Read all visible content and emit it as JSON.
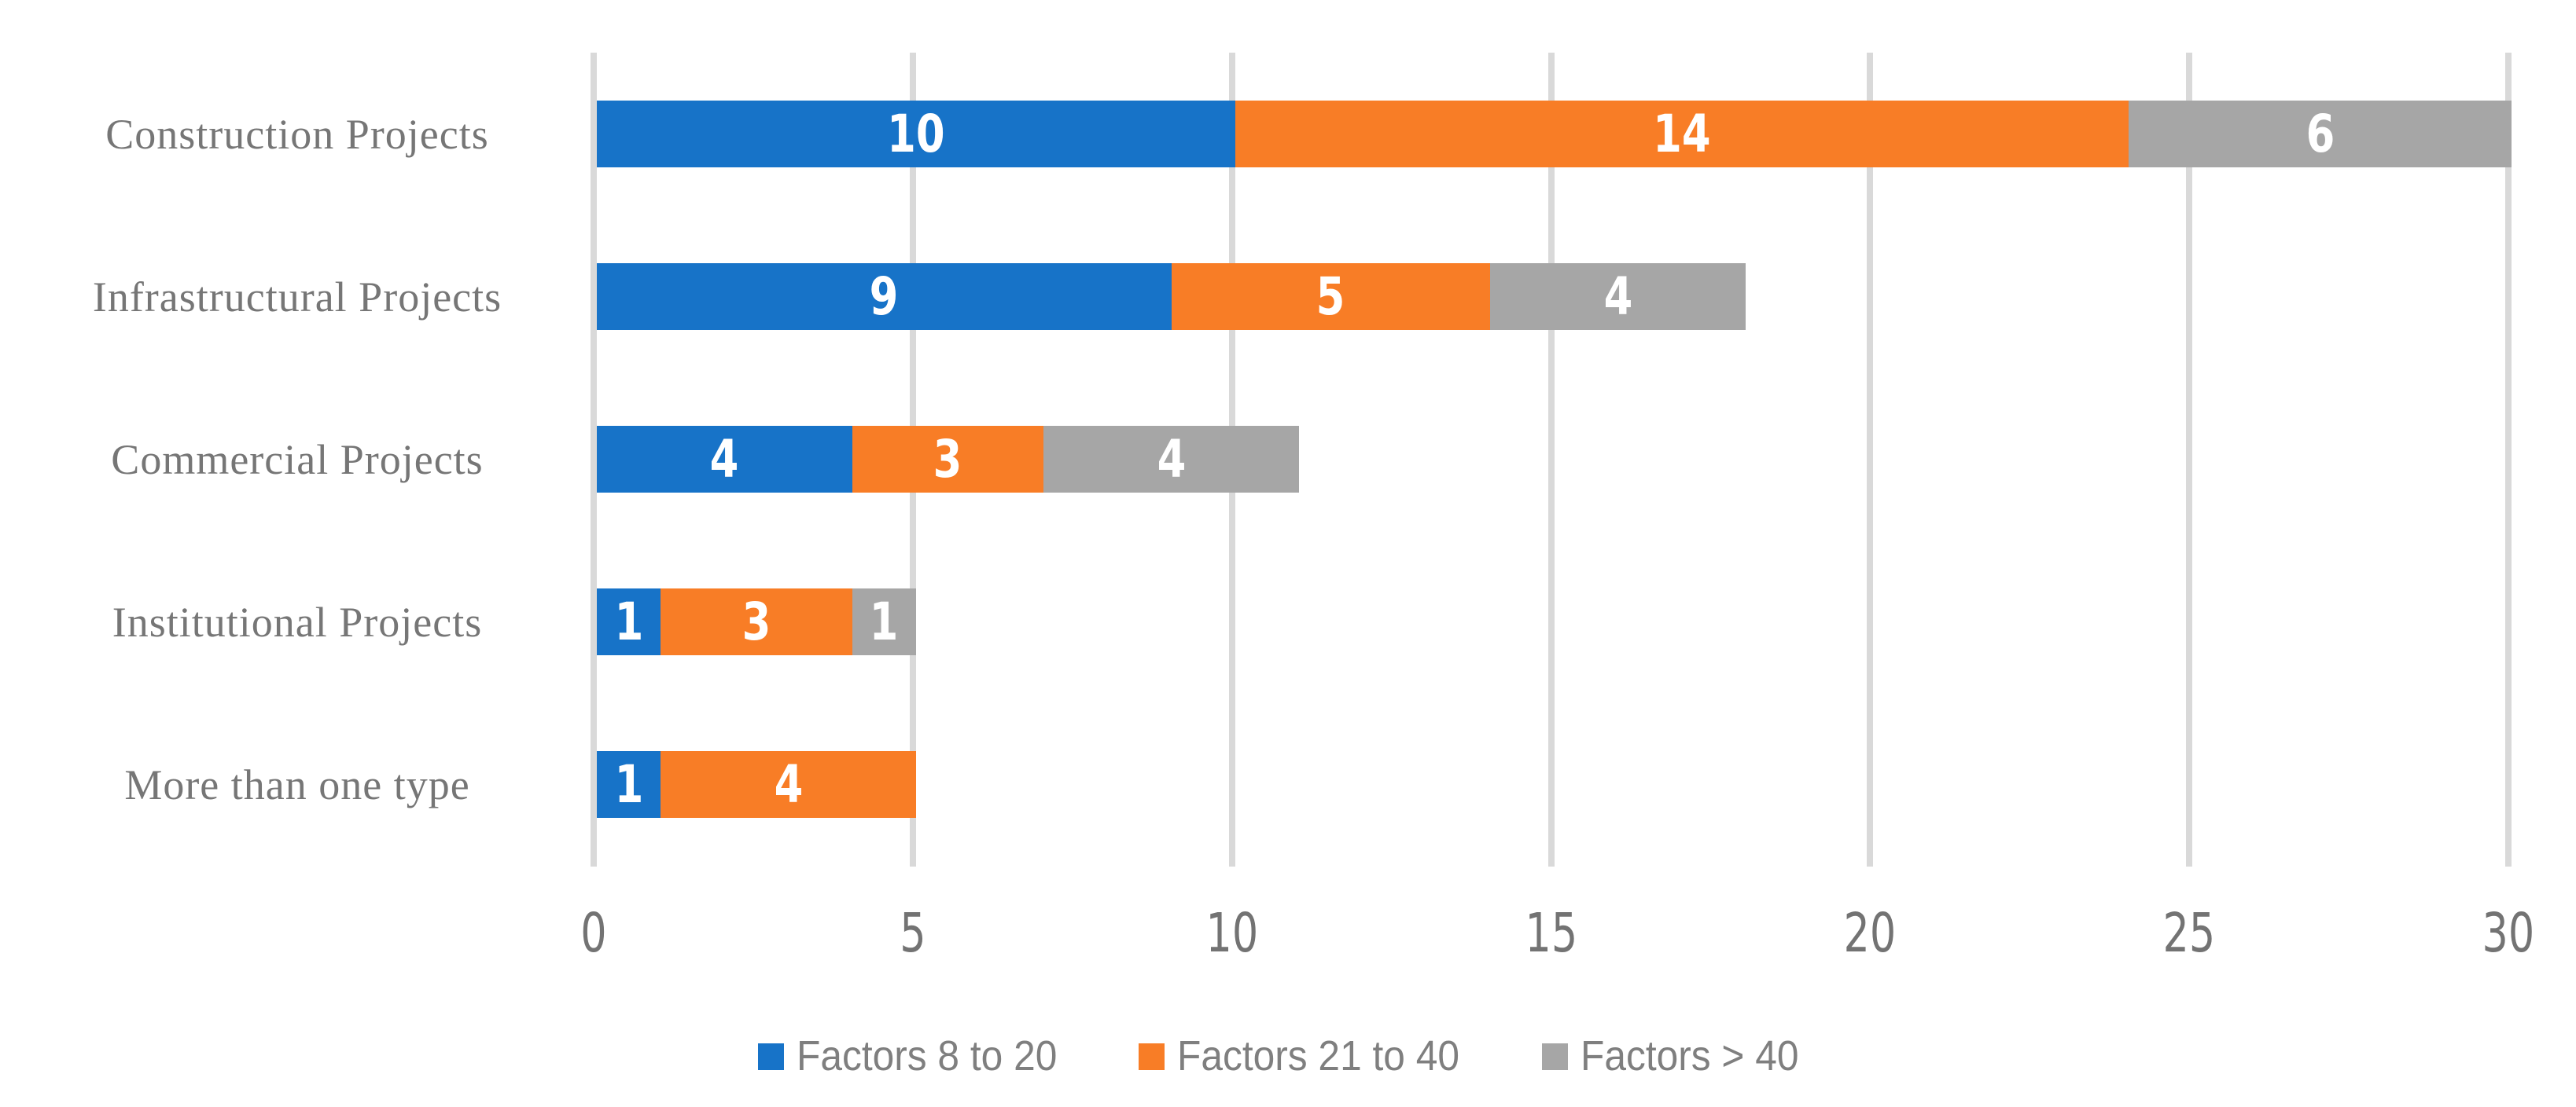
{
  "chart_data": {
    "type": "bar",
    "orientation": "horizontal",
    "stacked": true,
    "categories": [
      "Construction Projects",
      "Infrastructural Projects",
      "Commercial Projects",
      "Institutional Projects",
      "More than one type"
    ],
    "series": [
      {
        "name": "Factors 8 to 20",
        "color": "#1773C8",
        "values": [
          10,
          9,
          4,
          1,
          1
        ]
      },
      {
        "name": "Factors 21 to 40",
        "color": "#F87D26",
        "values": [
          14,
          5,
          3,
          3,
          4
        ]
      },
      {
        "name": "Factors > 40",
        "color": "#A6A6A6",
        "values": [
          6,
          4,
          4,
          1,
          0
        ]
      }
    ],
    "xlim": [
      0,
      30
    ],
    "xticks": [
      "0",
      "5",
      "10",
      "15",
      "20",
      "25",
      "30"
    ],
    "grid": "vertical",
    "gridline_color": "#D9D9D9",
    "legend_position": "bottom",
    "bar_label_color": "#FFFFFF",
    "category_label_color": "#767676",
    "tick_label_color": "#737373",
    "legend_text_color": "#7F7F7F",
    "background": "#FFFFFF"
  }
}
